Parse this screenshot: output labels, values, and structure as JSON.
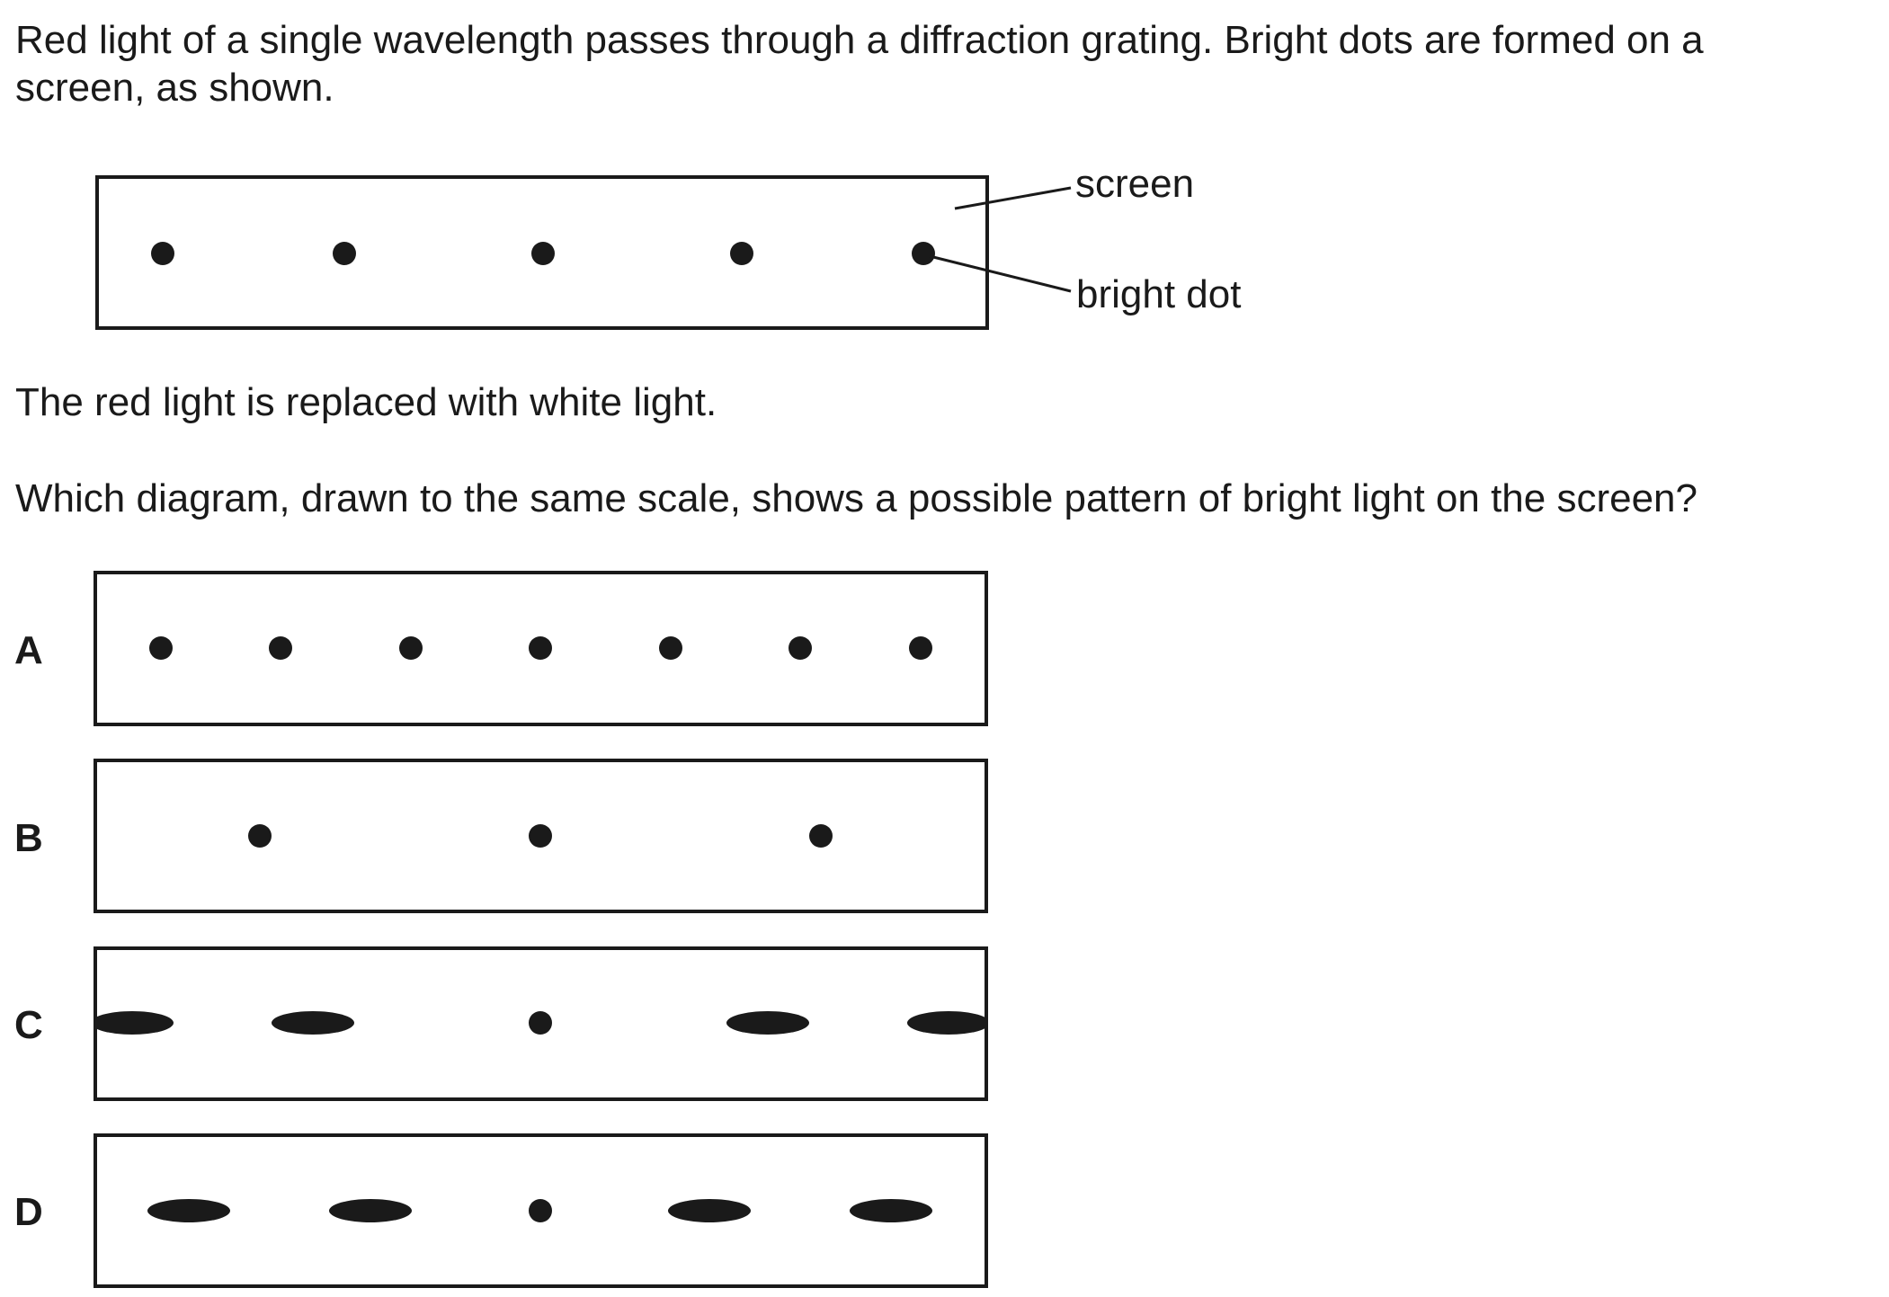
{
  "question": {
    "intro_line1": "Red light of a single wavelength passes through a diffraction grating. Bright dots are formed on a",
    "intro_line2": "screen, as shown.",
    "replaced_text": "The red light is replaced with white light.",
    "question_text": "Which diagram, drawn to the same scale, shows a possible pattern of bright light on the screen?"
  },
  "main_figure": {
    "screen_label": "screen",
    "bright_dot_label": "bright dot",
    "spot_count": 5
  },
  "options": [
    {
      "letter": "A",
      "pattern": [
        "dot",
        "dot",
        "dot",
        "dot",
        "dot",
        "dot",
        "dot"
      ]
    },
    {
      "letter": "B",
      "pattern": [
        "dot",
        "dot",
        "dot"
      ]
    },
    {
      "letter": "C",
      "pattern": [
        "spectrum",
        "spectrum",
        "dot",
        "spectrum",
        "spectrum"
      ]
    },
    {
      "letter": "D",
      "pattern": [
        "spectrum",
        "spectrum",
        "dot",
        "spectrum",
        "spectrum"
      ]
    }
  ]
}
